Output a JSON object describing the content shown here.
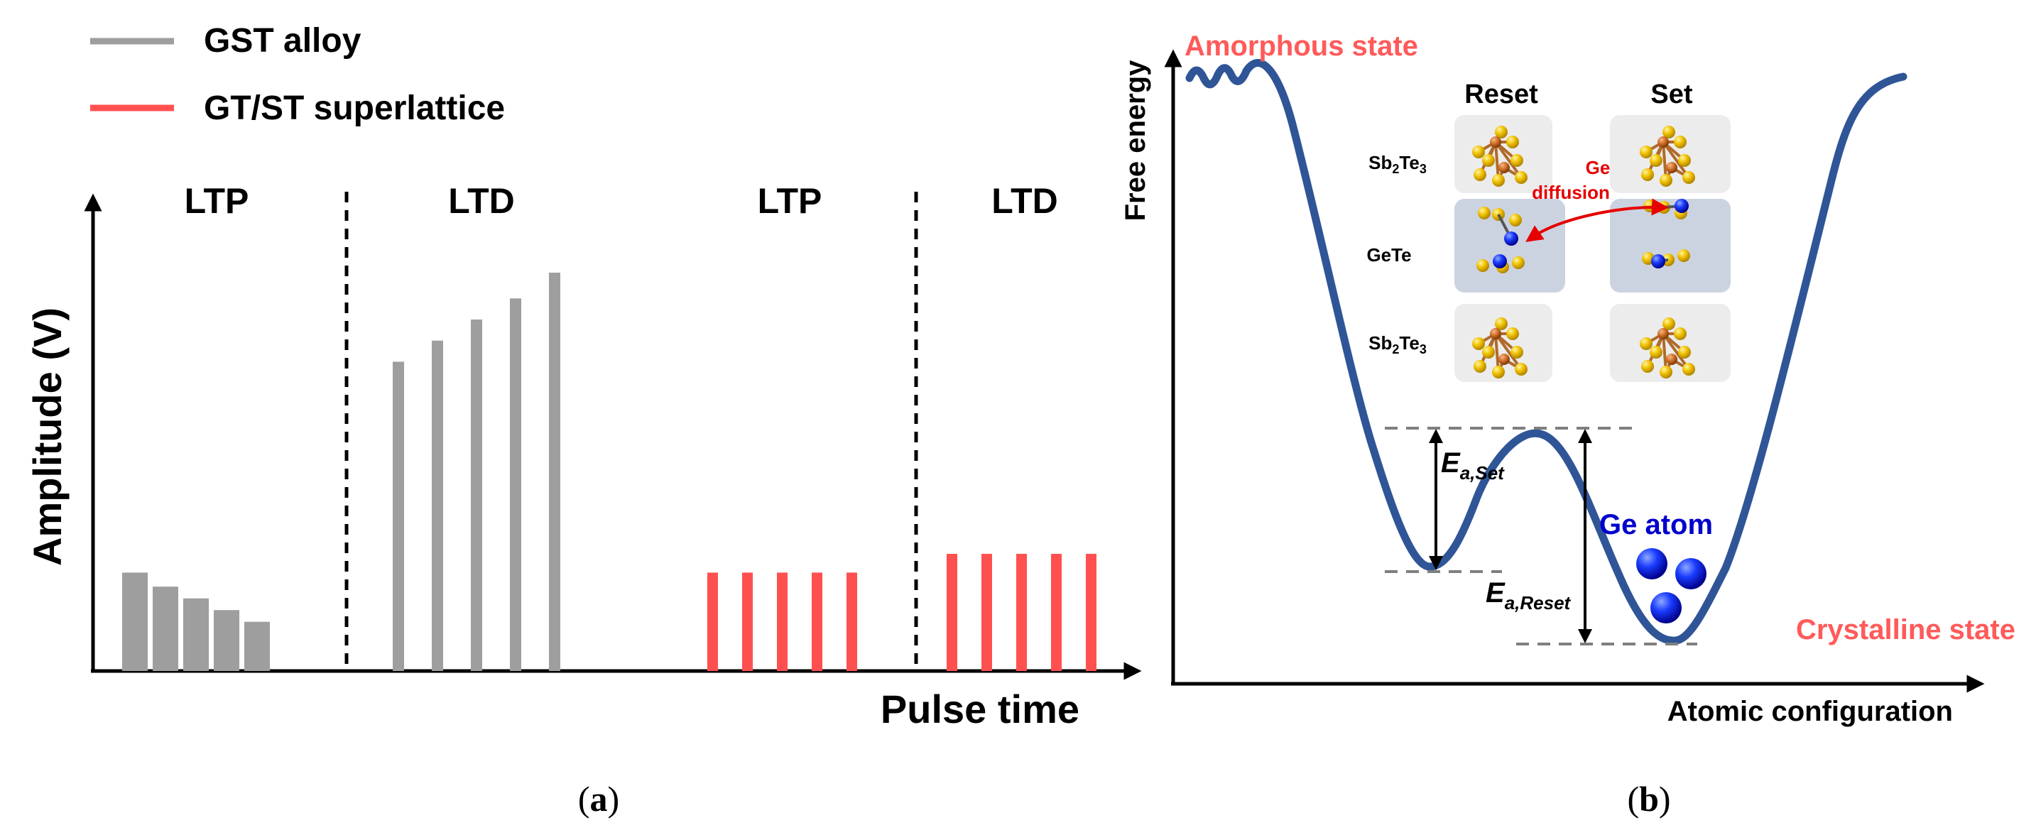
{
  "colors": {
    "gray_bar": "#9e9e9e",
    "red_bar": "#ff5050",
    "axis": "#000000",
    "curve": "#2f5597",
    "state_label": "#ff5a5a",
    "ge_blue": "#0000cc",
    "te_gold": "#e6b800",
    "sb_orange": "#c8641e",
    "diffusion_red": "#e60000"
  },
  "panel_a": {
    "legend": [
      {
        "label": "GST alloy",
        "color": "#9e9e9e"
      },
      {
        "label": "GT/ST superlattice",
        "color": "#ff5050"
      }
    ],
    "ylabel": "Amplitude (V)",
    "xlabel": "Pulse time",
    "caption": "(a)",
    "chart_data": {
      "type": "bar",
      "title": "",
      "xlabel": "Pulse time",
      "ylabel": "Amplitude (V)",
      "ylim": [
        0,
        10
      ],
      "regions": [
        "LTP",
        "LTD",
        "LTP",
        "LTD"
      ],
      "series": [
        {
          "name": "GST alloy",
          "region": "LTP",
          "values": [
            2.1,
            1.8,
            1.55,
            1.3,
            1.05
          ]
        },
        {
          "name": "GST alloy",
          "region": "LTD",
          "values": [
            6.6,
            7.05,
            7.5,
            7.95,
            8.5
          ]
        },
        {
          "name": "GT/ST superlattice",
          "region": "LTP",
          "values": [
            2.1,
            2.1,
            2.1,
            2.1,
            2.1
          ]
        },
        {
          "name": "GT/ST superlattice",
          "region": "LTD",
          "values": [
            2.5,
            2.5,
            2.5,
            2.5,
            2.5
          ]
        }
      ]
    }
  },
  "panel_b": {
    "ylabel": "Free energy",
    "xlabel": "Atomic configuration",
    "amorphous_label": "Amorphous state",
    "crystalline_label": "Crystalline state",
    "reset_label": "Reset",
    "set_label": "Set",
    "layer_labels": [
      {
        "base": "Sb",
        "sub1": "2",
        "mid": "Te",
        "sub2": "3"
      },
      {
        "base": "GeTe"
      },
      {
        "base": "Sb",
        "sub1": "2",
        "mid": "Te",
        "sub2": "3"
      }
    ],
    "diffusion_label": [
      "Ge",
      "diffusion"
    ],
    "ge_atom_label": "Ge atom",
    "ea_set": {
      "main": "E",
      "sub": "a,Set"
    },
    "ea_reset": {
      "main": "E",
      "sub": "a,Reset"
    },
    "caption": "(b)"
  }
}
